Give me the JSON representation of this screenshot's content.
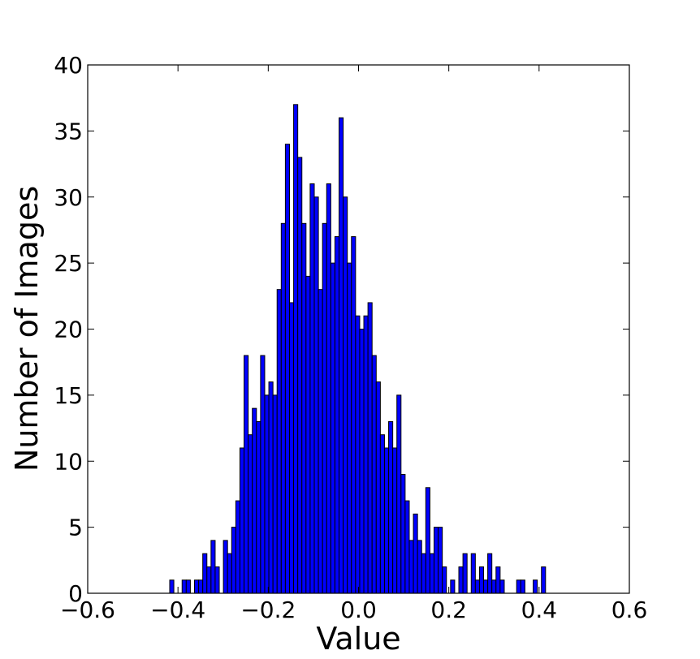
{
  "chart_data": {
    "type": "bar",
    "title": "",
    "xlabel": "Value",
    "ylabel": "Number of Images",
    "xlim": [
      -0.6,
      0.6
    ],
    "ylim": [
      0,
      40
    ],
    "xticks": [
      -0.6,
      -0.4,
      -0.2,
      0.0,
      0.2,
      0.4,
      0.6
    ],
    "yticks": [
      0,
      5,
      10,
      15,
      20,
      25,
      30,
      35,
      40
    ],
    "xtick_labels": [
      "−0.6",
      "−0.4",
      "−0.2",
      "0.0",
      "0.2",
      "0.4",
      "0.6"
    ],
    "ytick_labels": [
      "0",
      "5",
      "10",
      "15",
      "20",
      "25",
      "30",
      "35",
      "40"
    ],
    "bin_width": 0.00915,
    "bin_start": -0.5098,
    "values": [
      0,
      0,
      0,
      0,
      0,
      0,
      0,
      0,
      0,
      0,
      1,
      0,
      0,
      1,
      1,
      0,
      1,
      1,
      3,
      2,
      4,
      2,
      0,
      4,
      3,
      5,
      7,
      11,
      18,
      12,
      14,
      13,
      18,
      15,
      16,
      15,
      23,
      28,
      34,
      22,
      37,
      33,
      28,
      24,
      31,
      30,
      23,
      28,
      31,
      25,
      27,
      36,
      30,
      25,
      27,
      21,
      20,
      21,
      22,
      18,
      16,
      12,
      11,
      13,
      11,
      15,
      9,
      7,
      4,
      6,
      4,
      3,
      8,
      3,
      5,
      5,
      2,
      0,
      1,
      0,
      2,
      3,
      0,
      3,
      1,
      2,
      1,
      3,
      1,
      2,
      1,
      0,
      0,
      0,
      1,
      1,
      0,
      0,
      1,
      0,
      2
    ],
    "bar_color": "#0000ff",
    "edge_color": "#000000",
    "grid": false
  }
}
